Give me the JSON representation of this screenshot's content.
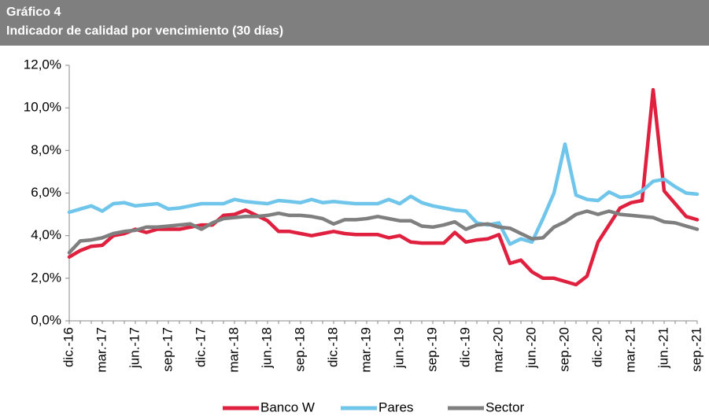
{
  "chart_data": {
    "type": "line",
    "title": "Gráfico 4",
    "subtitle": "Indicador de calidad por vencimiento (30 días)",
    "categories": [
      "dic.-16",
      null,
      null,
      "mar.-17",
      null,
      null,
      "jun.-17",
      null,
      null,
      "sep.-17",
      null,
      null,
      "dic.-17",
      null,
      null,
      "mar.-18",
      null,
      null,
      "jun.-18",
      null,
      null,
      "sep.-18",
      null,
      null,
      "dic.-18",
      null,
      null,
      "mar.-19",
      null,
      null,
      "jun.-19",
      null,
      null,
      "sep.-19",
      null,
      null,
      "dic.-19",
      null,
      null,
      "mar.-20",
      null,
      null,
      "jun.-20",
      null,
      null,
      "sep.-20",
      null,
      null,
      "dic.-20",
      null,
      null,
      "mar.-21",
      null,
      null,
      "jun.-21",
      null,
      null,
      "sep.-21"
    ],
    "series": [
      {
        "name": "Banco W",
        "color": "#e0203f",
        "values": [
          3.0,
          3.3,
          3.5,
          3.55,
          4.0,
          4.1,
          4.3,
          4.15,
          4.3,
          4.3,
          4.3,
          4.4,
          4.5,
          4.5,
          4.95,
          5.0,
          5.2,
          4.95,
          4.7,
          4.2,
          4.2,
          4.1,
          4.0,
          4.1,
          4.2,
          4.1,
          4.05,
          4.05,
          4.05,
          3.9,
          4.0,
          3.7,
          3.65,
          3.65,
          3.65,
          4.15,
          3.7,
          3.8,
          3.85,
          4.05,
          2.7,
          2.85,
          2.3,
          2.0,
          2.0,
          1.85,
          1.7,
          2.1,
          3.7,
          4.5,
          5.3,
          5.55,
          5.65,
          10.85,
          6.1,
          5.5,
          4.9,
          4.75
        ]
      },
      {
        "name": "Pares",
        "color": "#70c5ea",
        "values": [
          5.1,
          5.25,
          5.4,
          5.15,
          5.5,
          5.55,
          5.4,
          5.45,
          5.5,
          5.25,
          5.3,
          5.4,
          5.5,
          5.5,
          5.5,
          5.7,
          5.6,
          5.55,
          5.5,
          5.65,
          5.6,
          5.55,
          5.7,
          5.55,
          5.6,
          5.55,
          5.5,
          5.5,
          5.5,
          5.7,
          5.5,
          5.85,
          5.55,
          5.4,
          5.3,
          5.2,
          5.15,
          4.6,
          4.5,
          4.6,
          3.6,
          3.85,
          3.7,
          4.8,
          6.0,
          8.3,
          5.9,
          5.7,
          5.65,
          6.05,
          5.8,
          5.85,
          6.1,
          6.55,
          6.65,
          6.3,
          6.0,
          5.95
        ]
      },
      {
        "name": "Sector",
        "color": "#7f7f7f",
        "values": [
          3.2,
          3.75,
          3.8,
          3.9,
          4.1,
          4.2,
          4.25,
          4.4,
          4.4,
          4.45,
          4.5,
          4.55,
          4.3,
          4.6,
          4.8,
          4.85,
          4.9,
          4.9,
          4.95,
          5.05,
          4.95,
          4.95,
          4.9,
          4.8,
          4.55,
          4.75,
          4.75,
          4.8,
          4.9,
          4.8,
          4.7,
          4.7,
          4.45,
          4.4,
          4.5,
          4.65,
          4.3,
          4.5,
          4.55,
          4.4,
          4.35,
          4.1,
          3.85,
          3.9,
          4.4,
          4.65,
          5.0,
          5.15,
          5.0,
          5.15,
          5.0,
          4.95,
          4.9,
          4.85,
          4.65,
          4.6,
          4.45,
          4.3
        ]
      }
    ],
    "ylim": [
      0,
      12
    ],
    "yticks": [
      {
        "value": 0,
        "label": "0,0%"
      },
      {
        "value": 2,
        "label": "2,0%"
      },
      {
        "value": 4,
        "label": "4,0%"
      },
      {
        "value": 6,
        "label": "6,0%"
      },
      {
        "value": 8,
        "label": "8,0%"
      },
      {
        "value": 10,
        "label": "10,0%"
      },
      {
        "value": 12,
        "label": "12,0%"
      }
    ],
    "grid": false,
    "legend": "bottom"
  }
}
